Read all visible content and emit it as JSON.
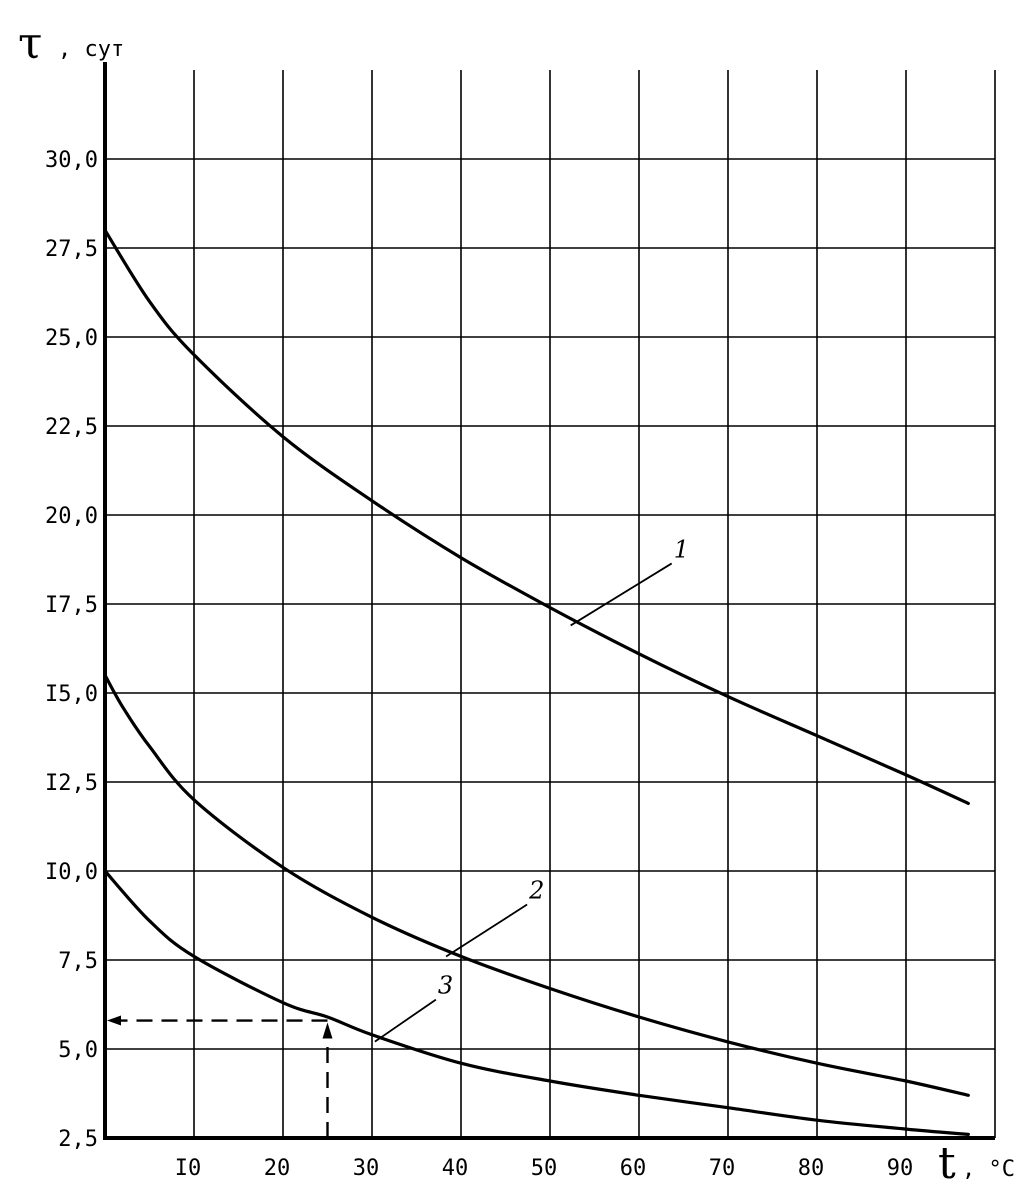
{
  "chart_data": {
    "type": "line",
    "ylabel": "τ",
    "ylabel_unit": ", сут",
    "xlabel": "t",
    "xlabel_unit": ", °C",
    "xlim": [
      0,
      100
    ],
    "ylim": [
      2.5,
      32.5
    ],
    "grid": true,
    "x_ticks": [
      10,
      20,
      30,
      40,
      50,
      60,
      70,
      80,
      90
    ],
    "x_tick_labels": [
      "I0",
      "20",
      "30",
      "40",
      "50",
      "60",
      "70",
      "80",
      "90"
    ],
    "y_ticks": [
      2.5,
      5.0,
      7.5,
      10.0,
      12.5,
      15.0,
      17.5,
      20.0,
      22.5,
      25.0,
      27.5,
      30.0
    ],
    "y_tick_labels": [
      "2,5",
      "5,0",
      "7,5",
      "I0,0",
      "I2,5",
      "I5,0",
      "I7,5",
      "20,0",
      "22,5",
      "25,0",
      "27,5",
      "30,0"
    ],
    "series": [
      {
        "name": "1",
        "x": [
          0,
          5,
          10,
          20,
          30,
          40,
          50,
          60,
          70,
          80,
          90,
          97
        ],
        "values": [
          28.0,
          26.0,
          24.5,
          22.2,
          20.4,
          18.8,
          17.4,
          16.1,
          14.9,
          13.8,
          12.7,
          11.9
        ]
      },
      {
        "name": "2",
        "x": [
          0,
          2,
          5,
          10,
          20,
          30,
          40,
          50,
          60,
          70,
          80,
          90,
          97
        ],
        "values": [
          15.5,
          14.6,
          13.5,
          12.0,
          10.1,
          8.7,
          7.6,
          6.7,
          5.9,
          5.2,
          4.6,
          4.1,
          3.7
        ]
      },
      {
        "name": "3",
        "x": [
          0,
          5,
          10,
          20,
          25,
          30,
          40,
          50,
          60,
          70,
          80,
          90,
          97
        ],
        "values": [
          10.0,
          8.6,
          7.6,
          6.3,
          5.9,
          5.4,
          4.6,
          4.1,
          3.7,
          3.35,
          3.0,
          2.75,
          2.6
        ]
      }
    ],
    "annotation": {
      "x": 25,
      "y": 5.8
    }
  }
}
